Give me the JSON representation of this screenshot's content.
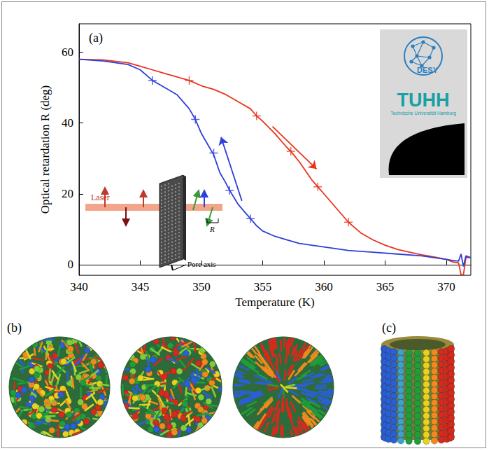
{
  "chart_data": {
    "type": "line",
    "panel": "(a)",
    "x_label": "Temperature (K)",
    "y_label": "Optical retardation R (deg)",
    "xlim": [
      340,
      372
    ],
    "xticks": [
      340,
      345,
      350,
      355,
      360,
      365,
      370
    ],
    "ylim": [
      -3,
      68
    ],
    "yticks": [
      0,
      20,
      40,
      60
    ],
    "grid": false,
    "series": [
      {
        "color": "#e8341c",
        "line_style": "solid",
        "marker": "+",
        "x": [
          340,
          342,
          344,
          345,
          346,
          347,
          348,
          349,
          350,
          351,
          352,
          353,
          354,
          354.5,
          355,
          356,
          357,
          357.3,
          358,
          359,
          359.5,
          360,
          361,
          362,
          363,
          364,
          365,
          366,
          367,
          368,
          369,
          370,
          370.5,
          371,
          371.2,
          371.4,
          371.6,
          372
        ],
        "values": [
          58,
          57.8,
          57,
          56,
          55,
          54,
          53,
          52,
          50.5,
          49.5,
          48,
          46,
          44,
          42,
          40.5,
          37,
          33,
          32,
          29,
          24,
          22,
          20,
          16,
          12,
          9,
          7,
          5.5,
          4.3,
          3.5,
          2.8,
          2.2,
          1.5,
          0.8,
          0.5,
          -2.8,
          -2.8,
          2,
          2
        ],
        "marker_x": [
          349,
          354.5,
          357.3,
          359.5,
          362
        ],
        "marker_values": [
          52,
          42,
          32,
          22,
          12
        ],
        "arrow": {
          "from": [
            355.8,
            39
          ],
          "to": [
            359.4,
            27
          ]
        }
      },
      {
        "color": "#2f3fd8",
        "line_style": "solid",
        "marker": "+",
        "x": [
          340,
          342,
          344,
          345,
          346,
          347,
          348,
          349,
          349.5,
          350,
          350.5,
          351,
          351.5,
          352,
          352.3,
          353,
          353.5,
          354,
          354.5,
          355,
          356,
          357,
          358,
          360,
          362,
          364,
          366,
          368,
          369,
          370,
          370.5,
          371,
          371.2,
          371.4,
          371.6,
          372
        ],
        "values": [
          58,
          57.5,
          56.5,
          55,
          52,
          50,
          48,
          44,
          41,
          37,
          34,
          31,
          26,
          23,
          21,
          17,
          15,
          13,
          11,
          9.5,
          8,
          7,
          6,
          5,
          4,
          3.5,
          3,
          2.5,
          2,
          1.5,
          1.2,
          1,
          3,
          -0.5,
          2.5,
          2
        ],
        "marker_x": [
          346,
          349.5,
          351,
          352.3,
          354
        ],
        "marker_values": [
          52,
          41,
          31.5,
          21,
          13
        ],
        "arrow": {
          "from": [
            353.3,
            18
          ],
          "to": [
            351.6,
            36
          ]
        }
      }
    ],
    "annotations": {
      "laser": "Laser",
      "pore_axis": "Pore axis",
      "retardation": "R",
      "logo_top": "DESY",
      "logo_middle": "TUHH",
      "logo_bottom": "Technische Universität Hamburg"
    }
  },
  "panels": [
    {
      "label": "(b)"
    },
    {
      "label": "(c)"
    }
  ]
}
